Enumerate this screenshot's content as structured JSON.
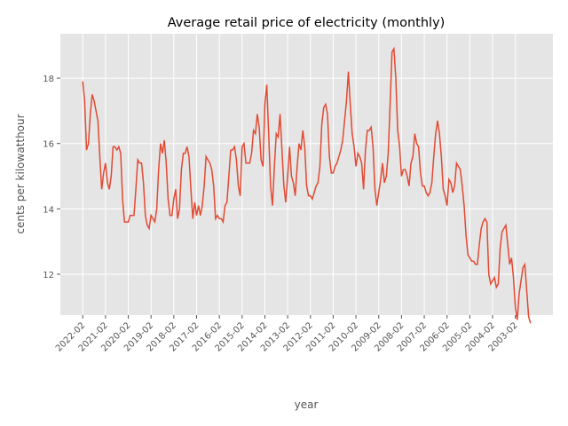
{
  "chart_data": {
    "type": "line",
    "title": "Average retail price of electricity (monthly)",
    "x_label": "year",
    "y_label": "cents per kilowatthour",
    "color": "#E24A33",
    "grid": true,
    "ylim": [
      10.75,
      19.36
    ],
    "yticks": [
      12,
      14,
      16,
      18
    ],
    "categories": [
      "2022-02",
      null,
      null,
      null,
      null,
      null,
      null,
      null,
      null,
      null,
      null,
      null,
      "2021-02",
      null,
      null,
      null,
      null,
      null,
      null,
      null,
      null,
      null,
      null,
      null,
      "2020-02",
      null,
      null,
      null,
      null,
      null,
      null,
      null,
      null,
      null,
      null,
      null,
      "2019-02",
      null,
      null,
      null,
      null,
      null,
      null,
      null,
      null,
      null,
      null,
      null,
      "2018-02",
      null,
      null,
      null,
      null,
      null,
      null,
      null,
      null,
      null,
      null,
      null,
      "2017-02",
      null,
      null,
      null,
      null,
      null,
      null,
      null,
      null,
      null,
      null,
      null,
      "2016-02",
      null,
      null,
      null,
      null,
      null,
      null,
      null,
      null,
      null,
      null,
      null,
      "2015-02",
      null,
      null,
      null,
      null,
      null,
      null,
      null,
      null,
      null,
      null,
      null,
      "2014-02",
      null,
      null,
      null,
      null,
      null,
      null,
      null,
      null,
      null,
      null,
      null,
      "2013-02",
      null,
      null,
      null,
      null,
      null,
      null,
      null,
      null,
      null,
      null,
      null,
      "2012-02",
      null,
      null,
      null,
      null,
      null,
      null,
      null,
      null,
      null,
      null,
      null,
      "2011-02",
      null,
      null,
      null,
      null,
      null,
      null,
      null,
      null,
      null,
      null,
      null,
      "2010-02",
      null,
      null,
      null,
      null,
      null,
      null,
      null,
      null,
      null,
      null,
      null,
      "2009-02",
      null,
      null,
      null,
      null,
      null,
      null,
      null,
      null,
      null,
      null,
      null,
      "2008-02",
      null,
      null,
      null,
      null,
      null,
      null,
      null,
      null,
      null,
      null,
      null,
      "2007-02",
      null,
      null,
      null,
      null,
      null,
      null,
      null,
      null,
      null,
      null,
      null,
      "2006-02",
      null,
      null,
      null,
      null,
      null,
      null,
      null,
      null,
      null,
      null,
      null,
      "2005-02",
      null,
      null,
      null,
      null,
      null,
      null,
      null,
      null,
      null,
      null,
      null,
      "2004-02",
      null,
      null,
      null,
      null,
      null,
      null,
      null,
      null,
      null,
      null,
      null,
      "2003-02",
      null,
      null,
      null,
      null,
      null,
      null,
      null,
      null
    ],
    "values": [
      17.9,
      17.3,
      15.8,
      16.0,
      16.9,
      17.5,
      17.3,
      17.0,
      16.7,
      15.6,
      14.6,
      15.1,
      15.4,
      14.8,
      14.6,
      15.0,
      15.9,
      15.9,
      15.8,
      15.9,
      15.7,
      14.3,
      13.6,
      13.6,
      13.6,
      13.8,
      13.8,
      13.8,
      14.6,
      15.5,
      15.4,
      15.4,
      14.8,
      13.8,
      13.5,
      13.4,
      13.8,
      13.7,
      13.6,
      14.0,
      15.2,
      16.0,
      15.7,
      16.1,
      15.4,
      14.3,
      13.8,
      13.8,
      14.3,
      14.6,
      13.7,
      14.0,
      15.2,
      15.7,
      15.7,
      15.9,
      15.6,
      14.6,
      13.7,
      14.2,
      13.8,
      14.1,
      13.8,
      14.1,
      14.7,
      15.6,
      15.5,
      15.4,
      15.2,
      14.7,
      13.7,
      13.8,
      13.7,
      13.7,
      13.6,
      14.1,
      14.2,
      15.0,
      15.8,
      15.8,
      15.9,
      15.5,
      14.7,
      14.4,
      15.9,
      16.0,
      15.4,
      15.4,
      15.4,
      15.7,
      16.4,
      16.3,
      16.9,
      16.5,
      15.5,
      15.3,
      17.2,
      17.8,
      16.3,
      14.7,
      14.1,
      15.3,
      16.3,
      16.2,
      16.9,
      15.8,
      14.7,
      14.2,
      15.0,
      15.9,
      15.0,
      14.8,
      14.4,
      15.3,
      16.0,
      15.8,
      16.4,
      15.9,
      14.7,
      14.4,
      14.4,
      14.3,
      14.5,
      14.7,
      14.8,
      15.3,
      16.6,
      17.1,
      17.2,
      16.9,
      15.6,
      15.1,
      15.1,
      15.3,
      15.4,
      15.6,
      15.8,
      16.1,
      16.7,
      17.3,
      18.2,
      17.2,
      16.3,
      15.9,
      15.3,
      15.7,
      15.6,
      15.4,
      14.6,
      15.8,
      16.4,
      16.4,
      16.5,
      15.9,
      14.6,
      14.1,
      14.5,
      14.9,
      15.4,
      14.8,
      15.0,
      15.7,
      17.2,
      18.8,
      18.9,
      18.0,
      16.4,
      15.9,
      15.0,
      15.2,
      15.2,
      15.0,
      14.7,
      15.4,
      15.6,
      16.3,
      16.0,
      15.9,
      15.1,
      14.7,
      14.7,
      14.5,
      14.4,
      14.5,
      14.8,
      15.6,
      16.3,
      16.7,
      16.3,
      15.6,
      14.6,
      14.4,
      14.1,
      14.9,
      14.8,
      14.5,
      14.7,
      15.4,
      15.3,
      15.2,
      14.7,
      14.1,
      13.2,
      12.6,
      12.5,
      12.4,
      12.4,
      12.3,
      12.3,
      12.9,
      13.4,
      13.6,
      13.7,
      13.6,
      12.0,
      11.7,
      11.8,
      11.9,
      11.6,
      11.7,
      12.8,
      13.3,
      13.4,
      13.5,
      12.9,
      12.3,
      12.5,
      11.9,
      11.0,
      10.6,
      11.4,
      11.8,
      12.2,
      12.3,
      11.5,
      10.7,
      10.5
    ]
  }
}
